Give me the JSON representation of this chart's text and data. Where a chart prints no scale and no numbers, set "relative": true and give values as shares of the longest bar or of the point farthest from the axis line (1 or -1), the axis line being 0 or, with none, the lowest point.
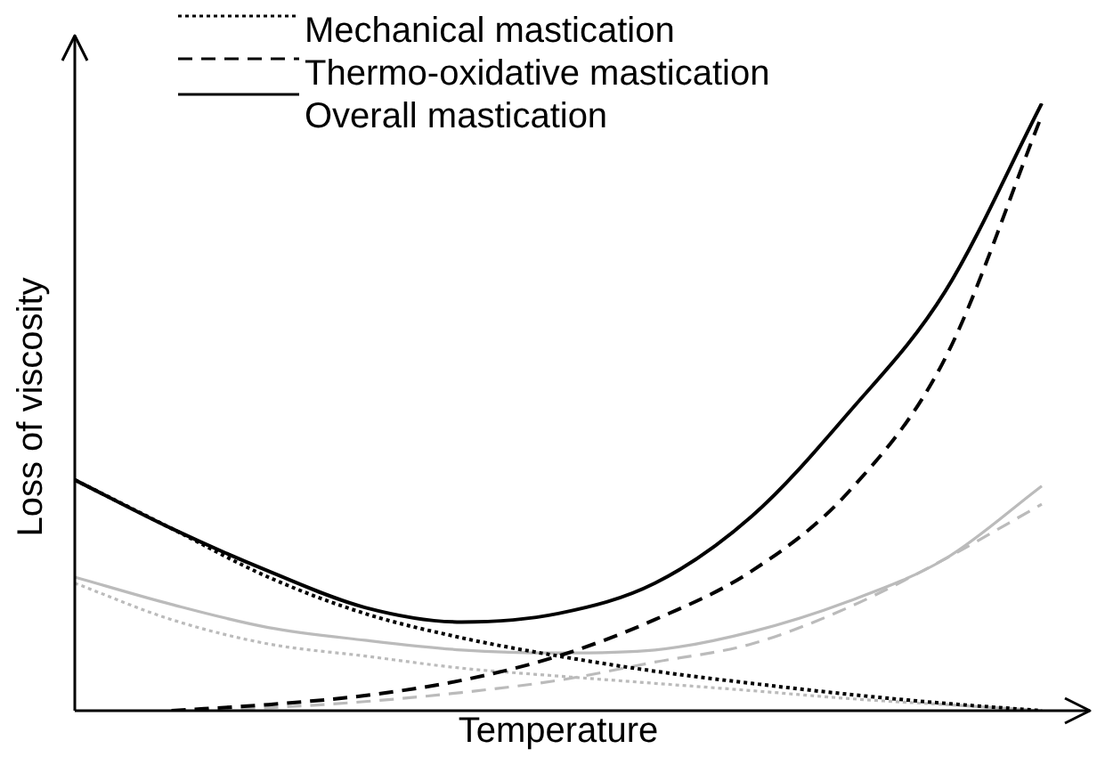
{
  "chart_data": {
    "type": "line",
    "relative": true,
    "xlabel": "Temperature",
    "ylabel": "Loss of viscosity",
    "legend": "top left",
    "grid": false,
    "marker": "none",
    "categories": [
      null,
      null,
      null,
      null,
      null,
      null,
      null,
      null,
      null,
      null,
      null
    ],
    "series": [
      {
        "name": "Mechanical mastication",
        "color": "#000000",
        "line_style": "dotted",
        "values": [
          0.38,
          0.3,
          0.22,
          0.16,
          0.12,
          0.09,
          0.065,
          0.045,
          0.027,
          0.012,
          0
        ]
      },
      {
        "name": "Thermo-oxidative mastication",
        "color": "#000000",
        "line_style": "dashed",
        "values": [
          null,
          0,
          0.01,
          0.025,
          0.05,
          0.09,
          0.15,
          0.23,
          0.36,
          0.58,
          0.98
        ]
      },
      {
        "name": "Overall mastication",
        "color": "#000000",
        "line_style": "solid",
        "values": [
          0.38,
          0.3,
          0.23,
          0.17,
          0.146,
          0.16,
          0.21,
          0.32,
          0.49,
          0.69,
          1
        ]
      },
      {
        "color": "#bbbbbb",
        "line_style": "dotted",
        "values": [
          0.21,
          0.15,
          0.11,
          0.09,
          0.07,
          0.057,
          0.045,
          0.033,
          0.02,
          0.01,
          0
        ]
      },
      {
        "color": "#bbbbbb",
        "line_style": "dashed",
        "values": [
          null,
          0,
          0.005,
          0.015,
          0.03,
          0.05,
          0.08,
          0.11,
          0.17,
          0.25,
          0.34
        ]
      },
      {
        "color": "#bbbbbb",
        "line_style": "solid",
        "values": [
          0.22,
          0.175,
          0.137,
          0.116,
          0.1,
          0.095,
          0.1,
          0.13,
          0.18,
          0.25,
          0.37
        ]
      }
    ]
  }
}
